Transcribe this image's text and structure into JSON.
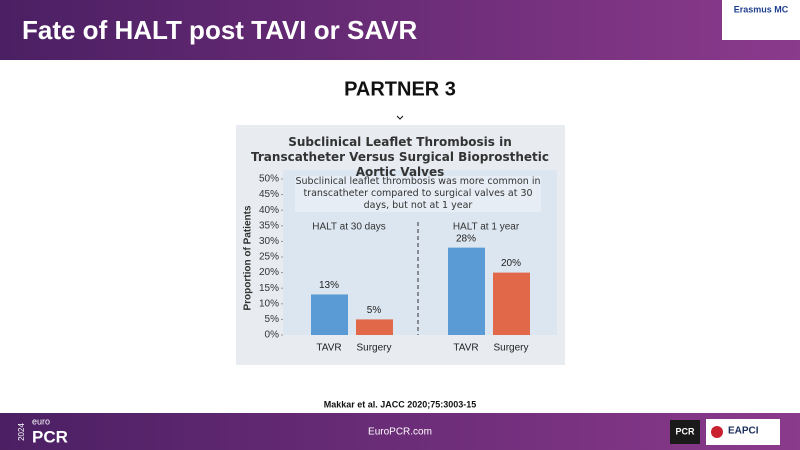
{
  "slide": {
    "title": "Fate of HALT post TAVI or SAVR",
    "logo_text": "Erasmus MC",
    "heading": "PARTNER 3",
    "citation": "Makkar et al. JACC 2020;75:3003-15",
    "footer_url": "EuroPCR.com",
    "footer_year": "2024",
    "footer_brand_small": "euro",
    "footer_brand": "PCR",
    "footer_logo_pcr": "PCR",
    "footer_logo_eapci": "EAPCI"
  },
  "chart_data": {
    "type": "bar",
    "title": "Subclinical Leaflet Thrombosis in Transcatheter Versus Surgical Bioprosthetic Aortic Valves",
    "annotation": "Subclinical leaflet thrombosis was more common in transcatheter compared to surgical valves at 30 days, but not at 1 year",
    "ylabel": "Proportion of Patients",
    "groups": [
      "HALT at 30 days",
      "HALT at 1 year"
    ],
    "categories": [
      "TAVR",
      "Surgery",
      "TAVR",
      "Surgery"
    ],
    "values": [
      13,
      5,
      28,
      20
    ],
    "value_labels": [
      "13%",
      "5%",
      "28%",
      "20%"
    ],
    "colors": [
      "#5b9bd5",
      "#e2684a",
      "#5b9bd5",
      "#e2684a"
    ],
    "ylim": [
      0,
      50
    ],
    "yticks": [
      {
        "value": 0,
        "label": "0%"
      },
      {
        "value": 5,
        "label": "5%"
      },
      {
        "value": 10,
        "label": "10%"
      },
      {
        "value": 15,
        "label": "15%"
      },
      {
        "value": 20,
        "label": "20%"
      },
      {
        "value": 25,
        "label": "25%"
      },
      {
        "value": 30,
        "label": "30%"
      },
      {
        "value": 35,
        "label": "35%"
      },
      {
        "value": 40,
        "label": "40%"
      },
      {
        "value": 45,
        "label": "45%"
      },
      {
        "value": 50,
        "label": "50%"
      }
    ]
  }
}
